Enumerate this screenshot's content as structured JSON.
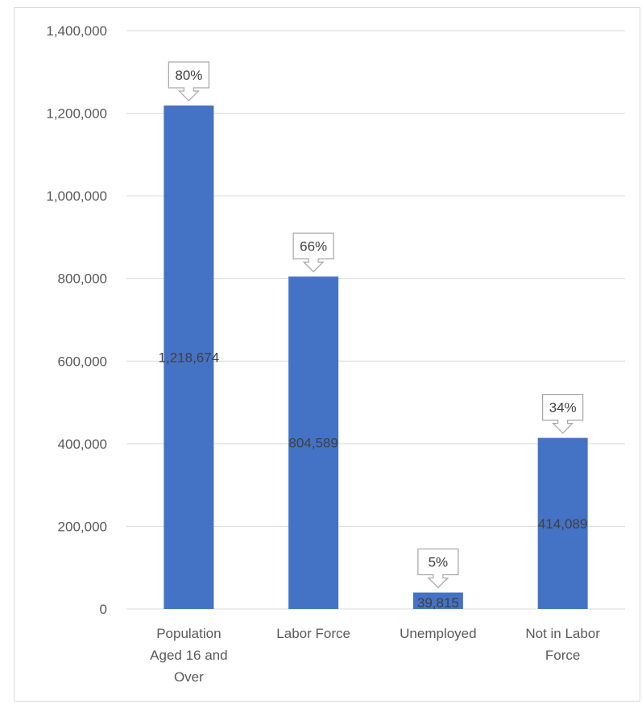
{
  "chart_data": {
    "type": "bar",
    "categories": [
      [
        "Population",
        "Aged 16 and",
        "Over"
      ],
      [
        "Labor Force"
      ],
      [
        "Unemployed"
      ],
      [
        "Not in Labor",
        "Force"
      ]
    ],
    "values": [
      1218674,
      804589,
      39815,
      414089
    ],
    "value_labels": [
      "1,218,674",
      "804,589",
      "39,815",
      "414,089"
    ],
    "percent_labels": [
      "80%",
      "66%",
      "5%",
      "34%"
    ],
    "yticks": [
      0,
      200000,
      400000,
      600000,
      800000,
      1000000,
      1200000,
      1400000
    ],
    "ytick_labels": [
      "0",
      "200,000",
      "400,000",
      "600,000",
      "800,000",
      "1,000,000",
      "1,200,000",
      "1,400,000"
    ],
    "ylim": [
      0,
      1400000
    ],
    "grid": true,
    "legend": "none",
    "colors": {
      "bar": "#4472c4",
      "grid": "#d9d9d9",
      "callout_border": "#a6a6a6"
    }
  }
}
